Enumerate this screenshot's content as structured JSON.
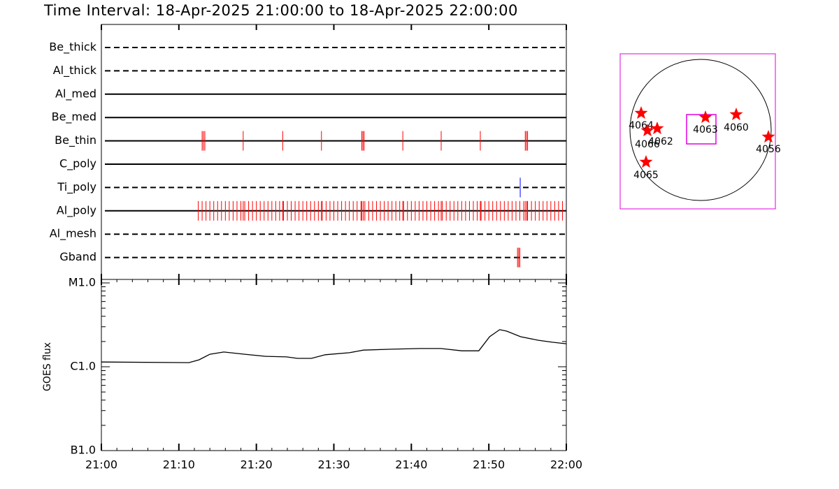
{
  "title": "Time Interval: 18-Apr-2025 21:00:00 to 18-Apr-2025 22:00:00",
  "chart_data": [
    {
      "type": "event",
      "categories": [
        "Be_thick",
        "Al_thick",
        "Al_med",
        "Be_med",
        "Be_thin",
        "C_poly",
        "Ti_poly",
        "Al_poly",
        "Al_mesh",
        "Gband"
      ],
      "line_styles": [
        "dashed",
        "dashed",
        "solid",
        "solid",
        "solid",
        "solid",
        "dashed",
        "solid",
        "dashed",
        "dashed"
      ],
      "event_colors": [
        "#ff0000",
        "#ff0000",
        "#ff0000",
        "#ff0000",
        "#ff0000",
        "#ff0000",
        "#0000ff",
        "#ff0000",
        "#ff0000",
        "#ff0000"
      ],
      "events": [
        [],
        [],
        [],
        [],
        [
          13.0,
          13.17,
          13.35,
          18.3,
          23.4,
          28.4,
          33.6,
          33.75,
          33.9,
          38.9,
          43.85,
          48.9,
          54.7,
          54.85,
          55.0
        ],
        [],
        [
          54.05
        ],
        [
          12.5,
          13.0,
          13.5,
          14.0,
          14.5,
          15.0,
          15.5,
          16.0,
          16.5,
          17.0,
          17.5,
          18.0,
          18.3,
          18.5,
          19.0,
          19.5,
          20.0,
          20.5,
          21.0,
          21.5,
          22.0,
          22.5,
          23.0,
          23.4,
          23.5,
          24.0,
          24.5,
          25.0,
          25.5,
          26.0,
          26.5,
          27.0,
          27.5,
          28.0,
          28.4,
          28.5,
          29.0,
          29.5,
          30.0,
          30.5,
          31.0,
          31.5,
          32.0,
          32.5,
          33.0,
          33.5,
          33.6,
          33.8,
          34.0,
          34.5,
          35.0,
          35.5,
          36.0,
          36.5,
          37.0,
          37.5,
          38.0,
          38.5,
          38.9,
          39.0,
          39.5,
          40.0,
          40.5,
          41.0,
          41.5,
          42.0,
          42.5,
          43.0,
          43.5,
          43.85,
          44.0,
          44.5,
          45.0,
          45.5,
          46.0,
          46.5,
          47.0,
          47.5,
          48.0,
          48.5,
          48.9,
          49.0,
          49.5,
          50.0,
          50.5,
          51.0,
          51.5,
          52.0,
          52.5,
          53.0,
          53.5,
          54.0,
          54.5,
          54.7,
          54.9,
          55.0,
          55.5,
          56.0,
          56.5,
          57.0,
          57.5,
          58.0,
          58.5,
          59.0,
          59.5
        ],
        [],
        [
          53.7,
          53.85,
          54.0
        ]
      ],
      "xlim": [
        0,
        60
      ]
    },
    {
      "type": "line",
      "ylabel": "GOES flux",
      "log_scale": true,
      "color": "#000000",
      "x": [
        0,
        11.3,
        12.6,
        14,
        15.8,
        18.5,
        21.2,
        23.9,
        25.3,
        27.1,
        28.9,
        32,
        33.8,
        37.4,
        41.1,
        43.8,
        46.5,
        48.7,
        50.1,
        51.4,
        52.3,
        54.1,
        56.4,
        58.2,
        60
      ],
      "values": [
        1.14e-06,
        1.12e-06,
        1.21e-06,
        1.41e-06,
        1.5e-06,
        1.41e-06,
        1.33e-06,
        1.31e-06,
        1.26e-06,
        1.26e-06,
        1.39e-06,
        1.47e-06,
        1.58e-06,
        1.62e-06,
        1.65e-06,
        1.65e-06,
        1.55e-06,
        1.55e-06,
        2.28e-06,
        2.77e-06,
        2.66e-06,
        2.28e-06,
        2.07e-06,
        1.96e-06,
        1.88e-06
      ],
      "xlim": [
        0,
        60
      ],
      "xticks": [
        {
          "value": 0,
          "label": "21:00"
        },
        {
          "value": 10,
          "label": "21:10"
        },
        {
          "value": 20,
          "label": "21:20"
        },
        {
          "value": 30,
          "label": "21:30"
        },
        {
          "value": 40,
          "label": "21:40"
        },
        {
          "value": 50,
          "label": "21:50"
        },
        {
          "value": 60,
          "label": "22:00"
        }
      ],
      "ylim": [
        1e-07,
        1e-05
      ],
      "yticks": [
        {
          "value": 1e-07,
          "label": "B1.0"
        },
        {
          "value": 1e-06,
          "label": "C1.0"
        },
        {
          "value": 1e-05,
          "label": "M1.0"
        }
      ]
    }
  ],
  "map": {
    "regions": [
      {
        "label": "4064"
      },
      {
        "label": "4066"
      },
      {
        "label": "4062"
      },
      {
        "label": "4063"
      },
      {
        "label": "4060"
      },
      {
        "label": "4056"
      },
      {
        "label": "4065"
      }
    ]
  }
}
